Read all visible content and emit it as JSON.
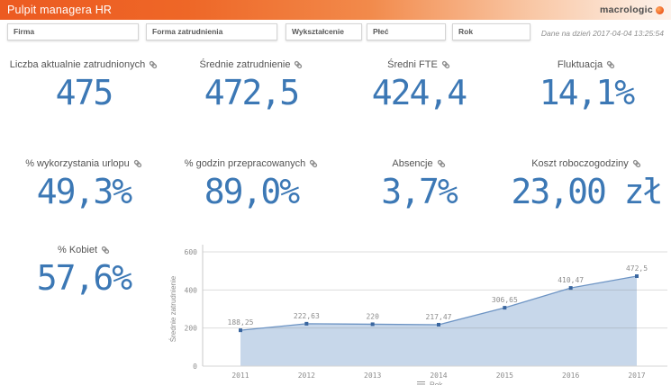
{
  "header": {
    "title": "Pulpit managera HR",
    "logo_text": "macrologic"
  },
  "filters": [
    {
      "label": "Firma"
    },
    {
      "label": "Forma zatrudnienia"
    },
    {
      "label": "Wykształcenie"
    },
    {
      "label": "Płeć"
    },
    {
      "label": "Rok"
    }
  ],
  "status": {
    "data_as_of": "Dane na dzień 2017-04-04 13:25:54"
  },
  "kpis": [
    {
      "title": "Liczba aktualnie zatrudnionych",
      "value": "475"
    },
    {
      "title": "Średnie zatrudnienie",
      "value": "472,5"
    },
    {
      "title": "Średni FTE",
      "value": "424,4"
    },
    {
      "title": "Fluktuacja",
      "value": "14,1%"
    },
    {
      "title": "% wykorzystania urlopu",
      "value": "49,3%"
    },
    {
      "title": "% godzin przepracowanych",
      "value": "89,0%"
    },
    {
      "title": "Absencje",
      "value": "3,7%"
    },
    {
      "title": "Koszt roboczogodziny",
      "value": "23,00 zł"
    },
    {
      "title": "% Kobiet",
      "value": "57,6%"
    }
  ],
  "chart_data": {
    "type": "area",
    "categories": [
      "2011",
      "2012",
      "2013",
      "2014",
      "2015",
      "2016",
      "2017"
    ],
    "values": [
      188.25,
      222.63,
      220,
      217.47,
      306.65,
      410.47,
      472.5
    ],
    "point_labels": [
      "188,25",
      "222,63",
      "220",
      "217,47",
      "306,65",
      "410,47",
      "472,5"
    ],
    "title": "",
    "xlabel": "Rok",
    "ylabel": "Średnie zatrudnienie",
    "ylim": [
      0,
      600
    ],
    "yticks": [
      0,
      200,
      400,
      600
    ],
    "grid": true,
    "legend": false,
    "line_color": "#6d94c4",
    "fill_color": "#c7d7ea",
    "marker_color": "#3a669f",
    "axis_text_color": "#8c8c8c"
  },
  "colors": {
    "accent_orange": "#ec5a21",
    "kpi_blue": "#3c78b5"
  }
}
